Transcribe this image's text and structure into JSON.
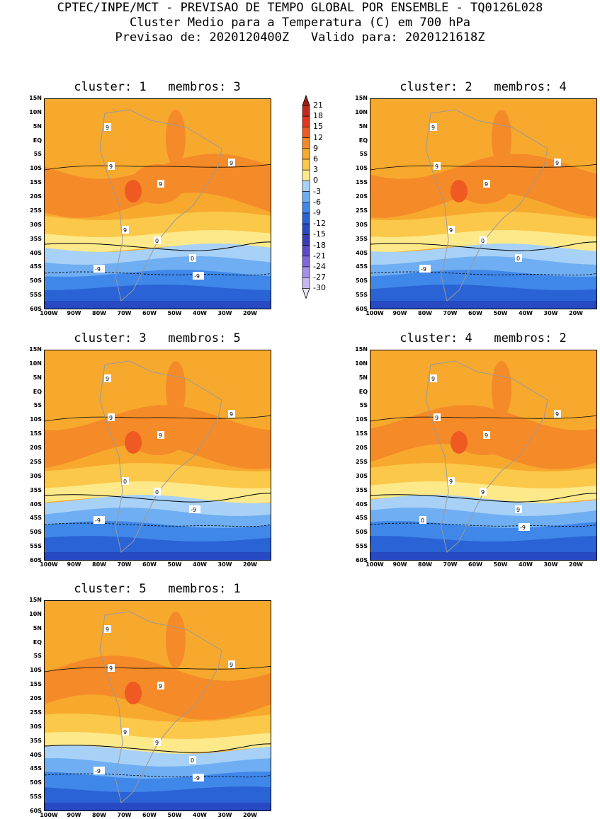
{
  "header": {
    "line1": "CPTEC/INPE/MCT - PREVISAO DE TEMPO GLOBAL POR ENSEMBLE - TQ0126L028",
    "line2": "Cluster Medio para a Temperatura (C) em 700 hPa",
    "line3": "Previsao de: 2020120400Z   Valido para: 2020121618Z"
  },
  "lat_labels": [
    "15N",
    "10N",
    "5N",
    "EQ",
    "5S",
    "10S",
    "15S",
    "20S",
    "25S",
    "30S",
    "35S",
    "40S",
    "45S",
    "50S",
    "55S",
    "60S"
  ],
  "lon_labels": [
    "100W",
    "90W",
    "80W",
    "70W",
    "60W",
    "50W",
    "40W",
    "30W",
    "20W"
  ],
  "colorbar": {
    "labels": [
      "21",
      "18",
      "15",
      "12",
      "9",
      "6",
      "3",
      "0",
      "-3",
      "-6",
      "-9",
      "-12",
      "-15",
      "-18",
      "-21",
      "-24",
      "-27",
      "-30"
    ],
    "colors": [
      "#a01d14",
      "#c02a1c",
      "#e2361e",
      "#ef5a22",
      "#f58a28",
      "#f7a92e",
      "#fbc84a",
      "#fde98a",
      "#a8d1f7",
      "#6faef2",
      "#3f87e8",
      "#2a63d6",
      "#2749c2",
      "#3a3bb4",
      "#5a49c8",
      "#7d67da",
      "#a690e6",
      "#c9b8f0",
      "#ece6fa"
    ]
  },
  "clusters": [
    {
      "title": "cluster: 1   membros: 3",
      "labels": [
        "9",
        "9",
        "9",
        "9",
        "9",
        "0",
        "0",
        "-9",
        "-9"
      ]
    },
    {
      "title": "cluster: 2   membros: 4",
      "labels": [
        "9",
        "9",
        "9",
        "9",
        "9",
        "0",
        "0",
        "-9"
      ]
    },
    {
      "title": "cluster: 3   membros: 5",
      "labels": [
        "9",
        "9",
        "9",
        "9",
        "0",
        "0",
        "-9",
        "-9"
      ]
    },
    {
      "title": "cluster: 4   membros: 2",
      "labels": [
        "9",
        "9",
        "9",
        "9",
        "9",
        "9",
        "9",
        "0",
        "-9"
      ]
    },
    {
      "title": "cluster: 5   membros: 1",
      "labels": [
        "9",
        "9",
        "9",
        "9",
        "9",
        "9",
        "0",
        "-9",
        "-9"
      ]
    }
  ]
}
